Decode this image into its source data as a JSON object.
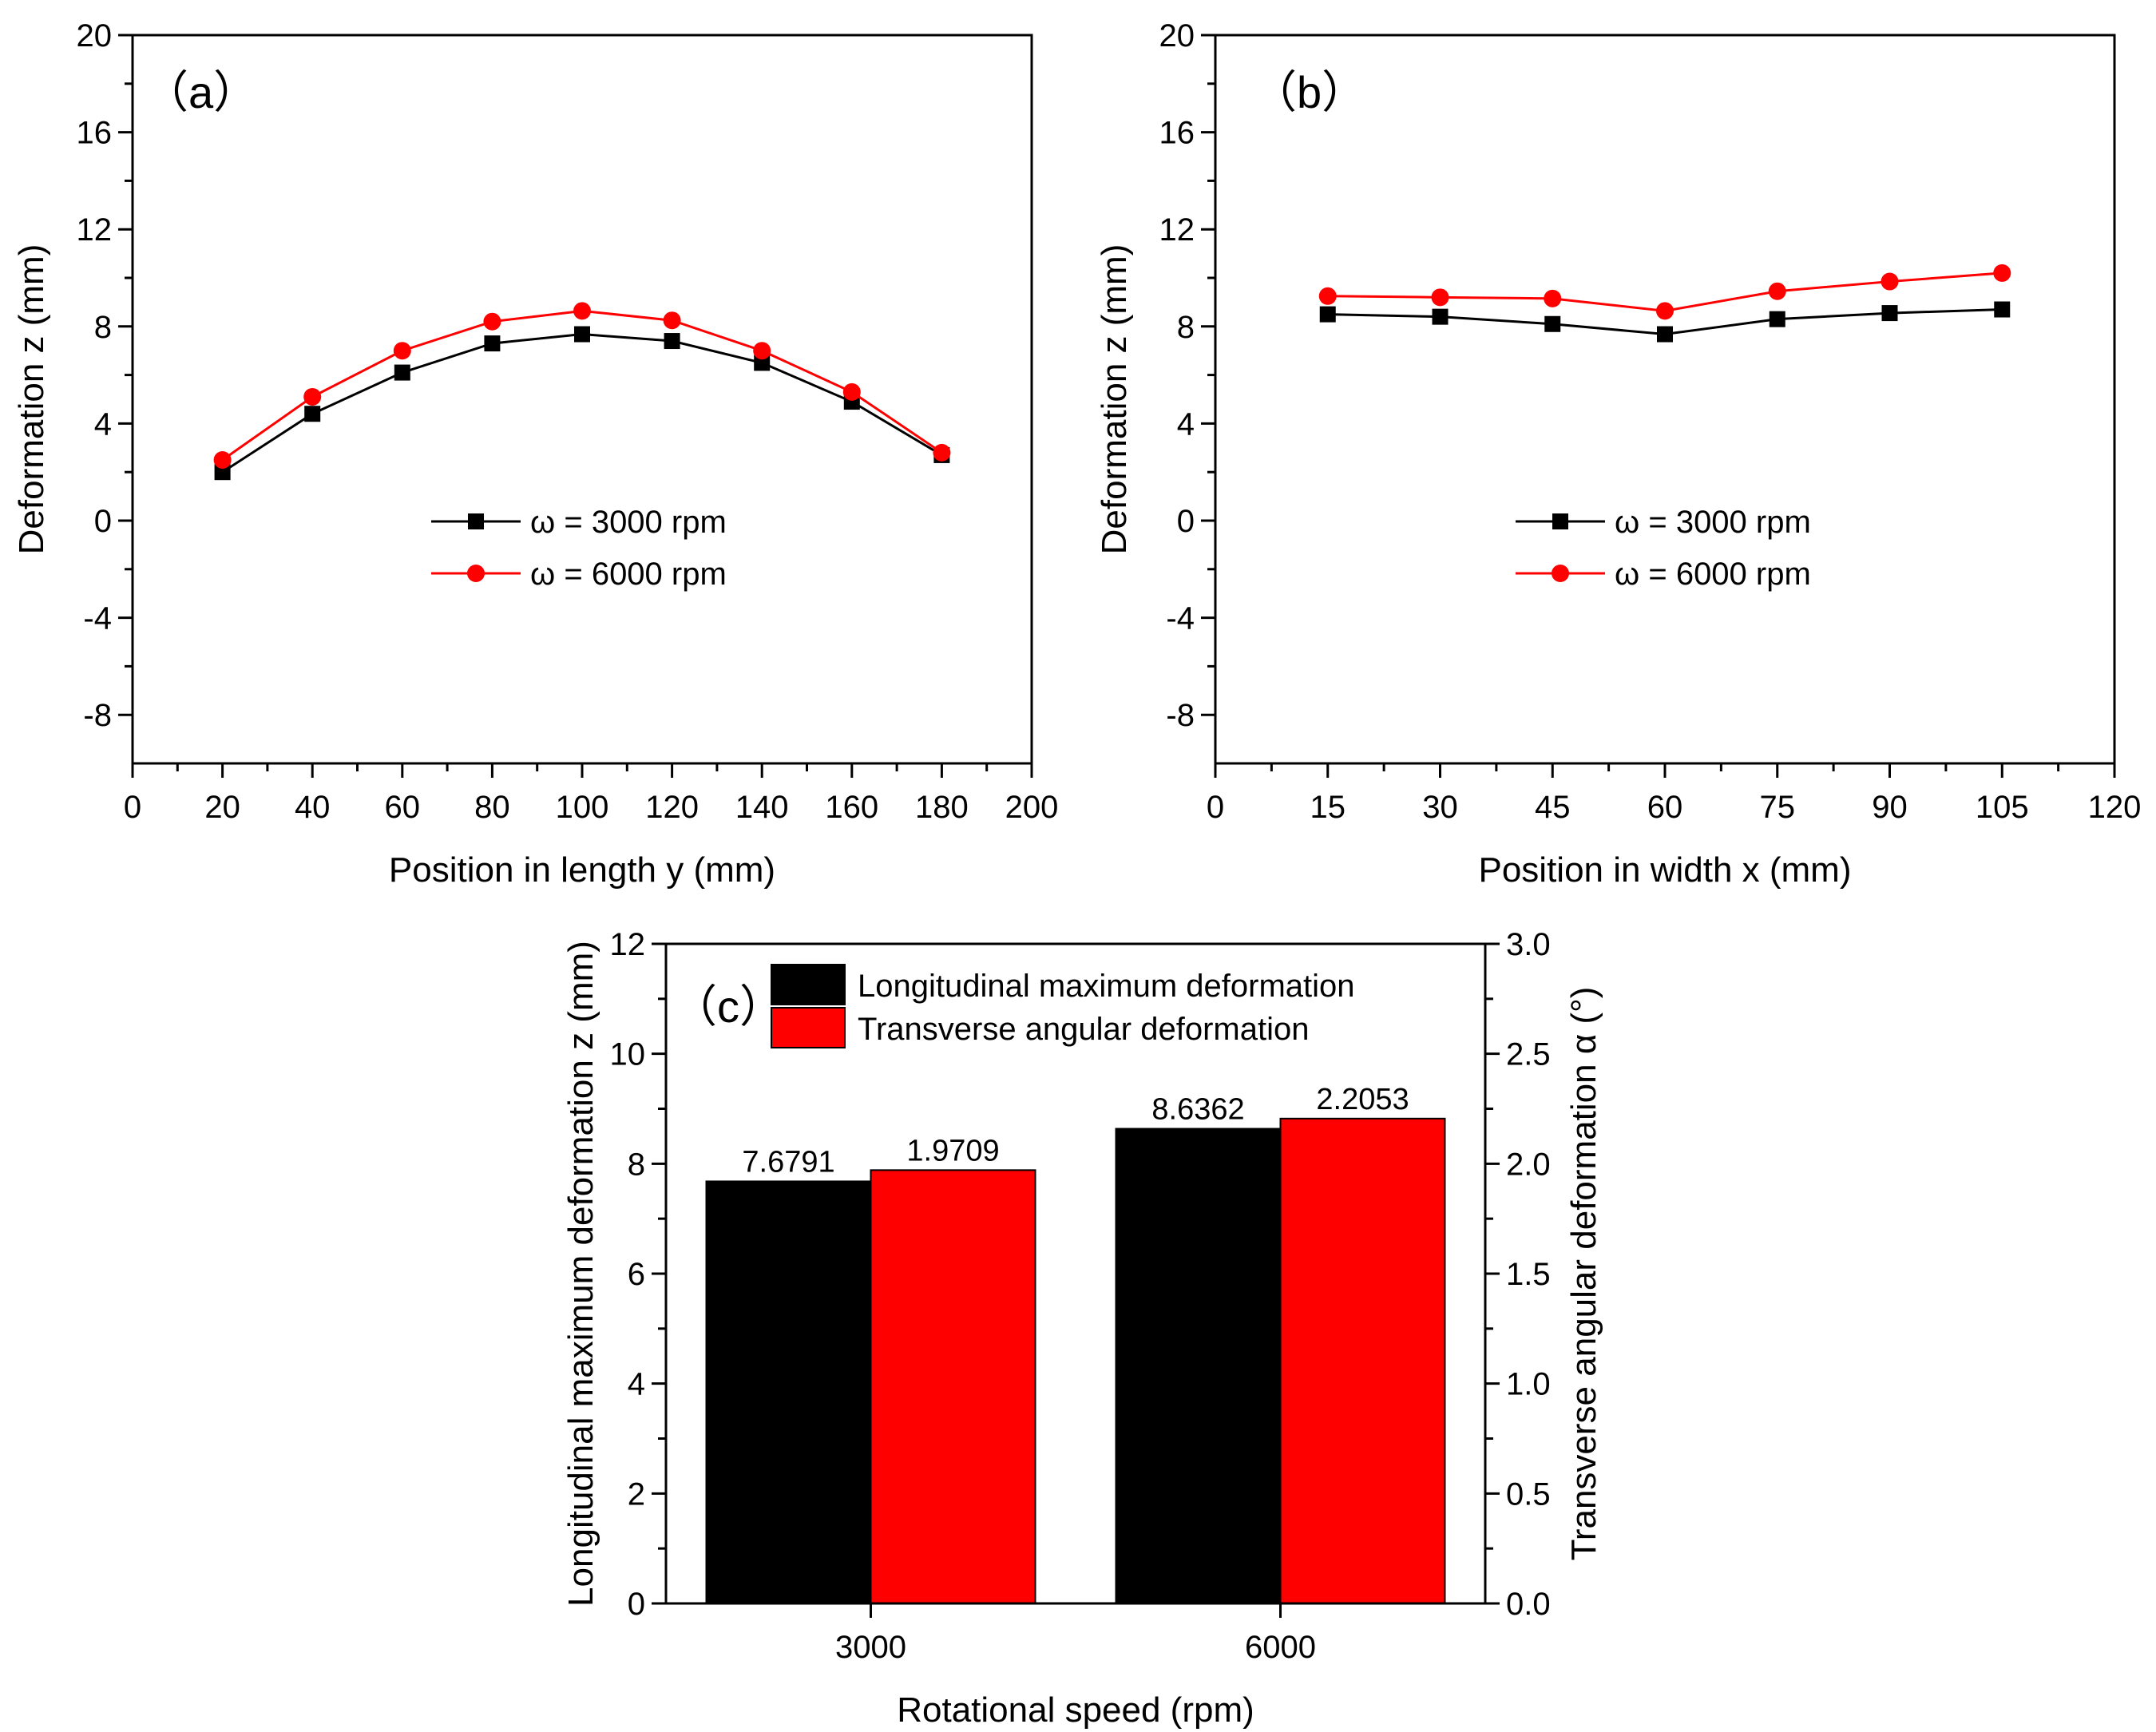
{
  "chart_data": [
    {
      "panel_label": "（a）",
      "type": "line",
      "xlabel": "Position in length y (mm)",
      "ylabel": "Deformation z (mm)",
      "xlim": [
        0,
        200
      ],
      "ylim": [
        -10,
        20
      ],
      "xticks": [
        0,
        20,
        40,
        60,
        80,
        100,
        120,
        140,
        160,
        180,
        200
      ],
      "yticks": [
        -8,
        -4,
        0,
        4,
        8,
        12,
        16,
        20
      ],
      "grid": false,
      "legend_position": "center",
      "series": [
        {
          "name": "ω = 3000 rpm",
          "color": "#000000",
          "marker": "square",
          "x": [
            20,
            40,
            60,
            80,
            100,
            120,
            140,
            160,
            180
          ],
          "y": [
            2.0,
            4.4,
            6.1,
            7.3,
            7.68,
            7.4,
            6.5,
            4.9,
            2.7
          ]
        },
        {
          "name": "ω = 6000 rpm",
          "color": "#ff0000",
          "marker": "circle",
          "x": [
            20,
            40,
            60,
            80,
            100,
            120,
            140,
            160,
            180
          ],
          "y": [
            2.5,
            5.1,
            7.0,
            8.2,
            8.64,
            8.25,
            7.0,
            5.3,
            2.8
          ]
        }
      ]
    },
    {
      "panel_label": "（b）",
      "type": "line",
      "xlabel": "Position in width x (mm)",
      "ylabel": "Deformation z (mm)",
      "xlim": [
        0,
        120
      ],
      "ylim": [
        -10,
        20
      ],
      "xticks": [
        0,
        15,
        30,
        45,
        60,
        75,
        90,
        105,
        120
      ],
      "yticks": [
        -8,
        -4,
        0,
        4,
        8,
        12,
        16,
        20
      ],
      "grid": false,
      "legend_position": "center",
      "series": [
        {
          "name": "ω = 3000 rpm",
          "color": "#000000",
          "marker": "square",
          "x": [
            15,
            30,
            45,
            60,
            75,
            90,
            105
          ],
          "y": [
            8.5,
            8.4,
            8.1,
            7.68,
            8.3,
            8.55,
            8.7
          ]
        },
        {
          "name": "ω = 6000 rpm",
          "color": "#ff0000",
          "marker": "circle",
          "x": [
            15,
            30,
            45,
            60,
            75,
            90,
            105
          ],
          "y": [
            9.25,
            9.2,
            9.15,
            8.64,
            9.45,
            9.85,
            10.2
          ]
        }
      ]
    },
    {
      "panel_label": "（c）",
      "type": "bar",
      "xlabel": "Rotational speed (rpm)",
      "ylabel": "Longitudinal maximum deformation z (mm)",
      "ylabel_right": "Transverse angular deformation α (°)",
      "categories": [
        "3000",
        "6000"
      ],
      "ylim": [
        0,
        12
      ],
      "ylim_right": [
        0,
        3.0
      ],
      "yticks": [
        0,
        2,
        4,
        6,
        8,
        10,
        12
      ],
      "yticks_right": [
        "0.0",
        "0.5",
        "1.0",
        "1.5",
        "2.0",
        "2.5",
        "3.0"
      ],
      "grid": false,
      "legend_position": "top-left",
      "series": [
        {
          "name": "Longitudinal maximum deformation",
          "color": "#000000",
          "axis": "left",
          "values": [
            7.6791,
            8.6362
          ],
          "labels": [
            "7.6791",
            "8.6362"
          ]
        },
        {
          "name": "Transverse angular deformation",
          "color": "#ff0000",
          "axis": "right",
          "values": [
            1.9709,
            2.2053
          ],
          "labels": [
            "1.9709",
            "2.2053"
          ]
        }
      ]
    }
  ]
}
